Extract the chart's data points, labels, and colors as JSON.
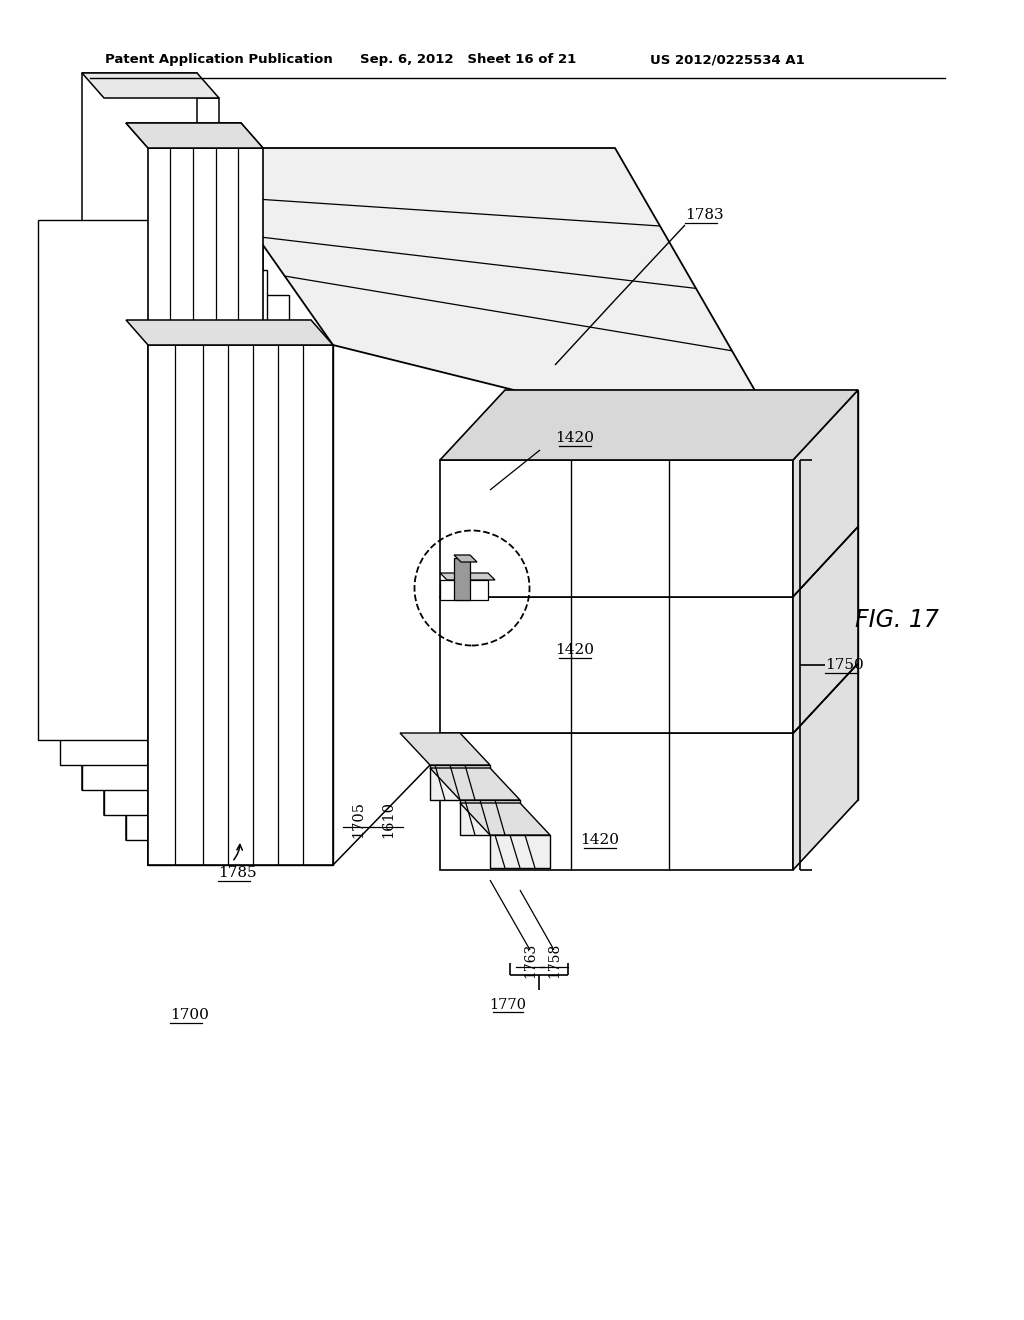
{
  "header_left": "Patent Application Publication",
  "header_mid": "Sep. 6, 2012   Sheet 16 of 21",
  "header_right": "US 2012/0225534 A1",
  "fig_label": "FIG. 17",
  "bg_color": "#ffffff"
}
